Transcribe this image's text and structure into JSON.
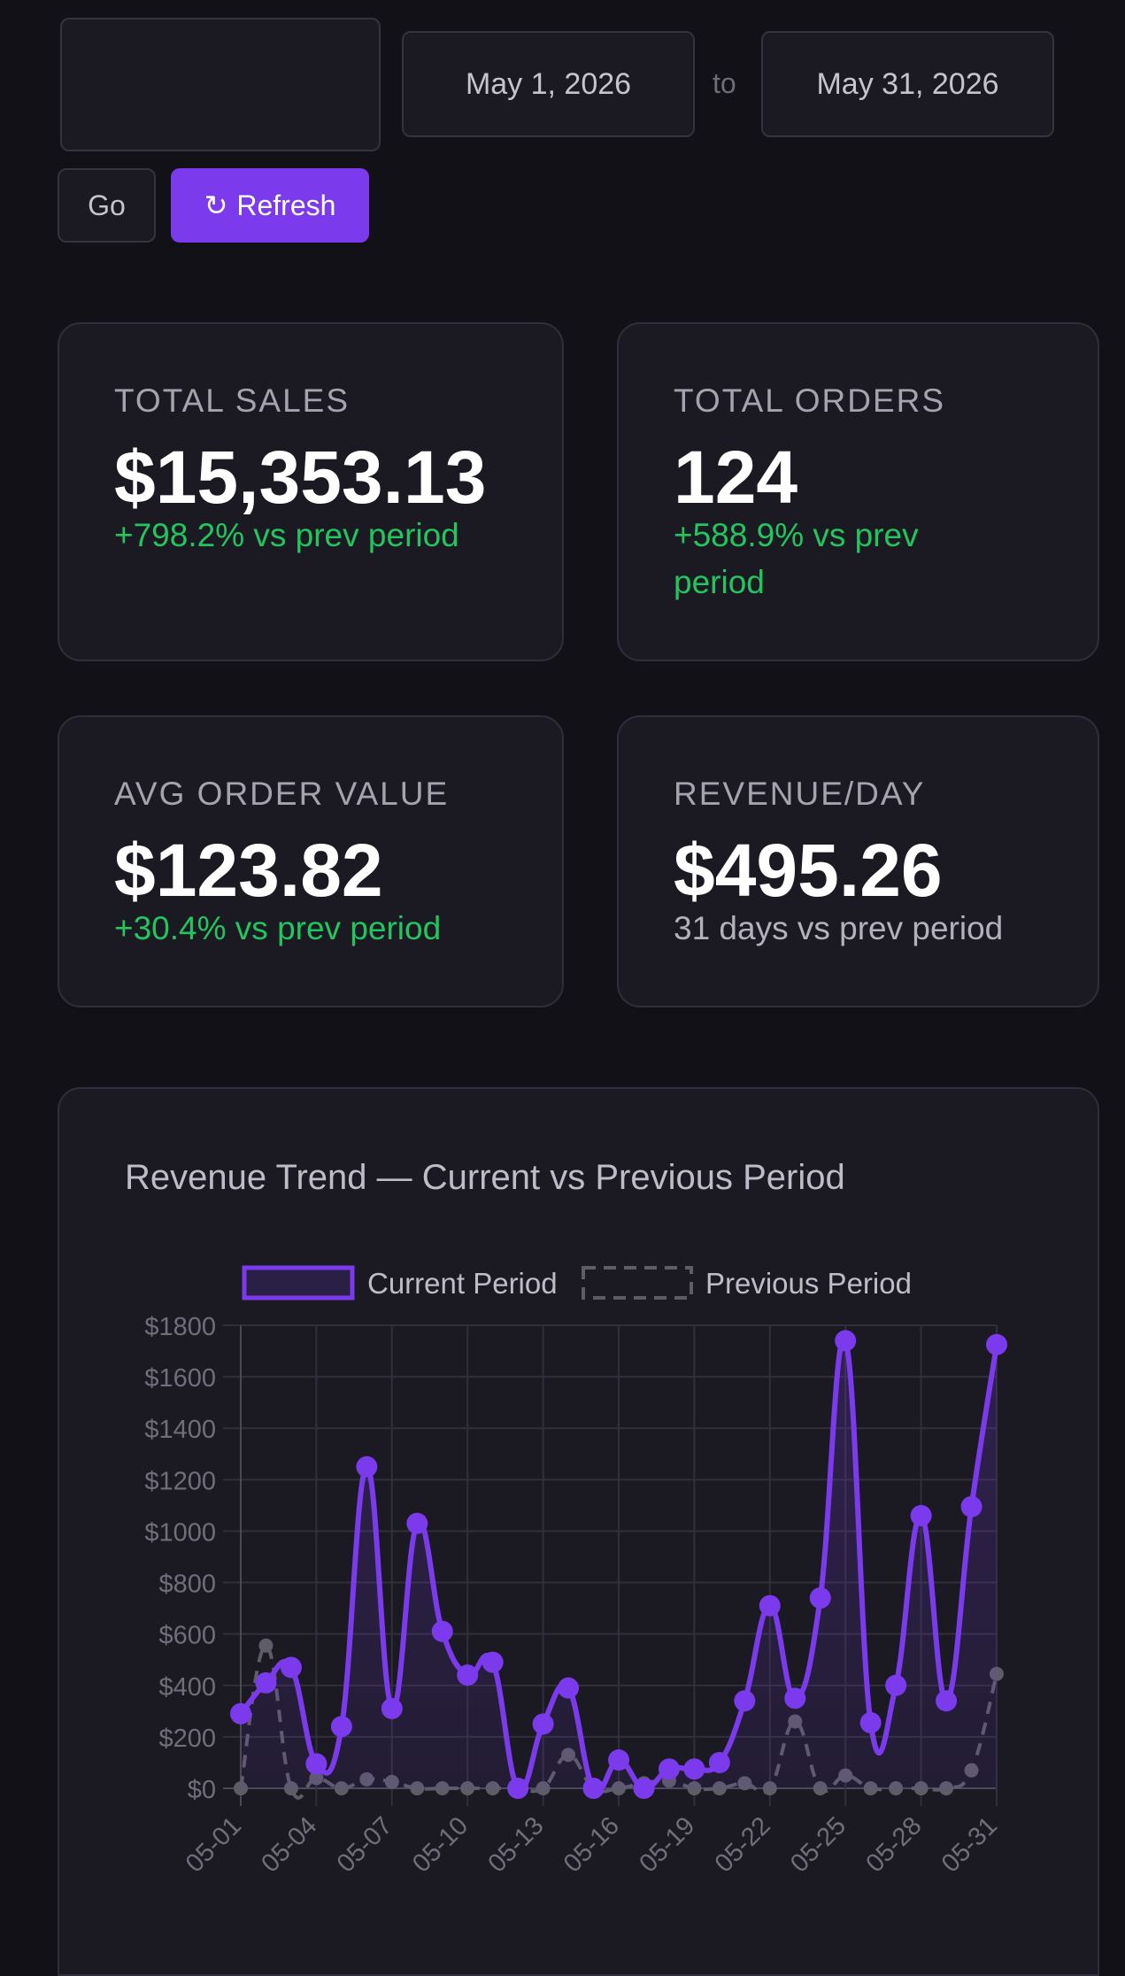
{
  "filters": {
    "preset_value": "",
    "start_date": "May 1, 2026",
    "separator": "to",
    "end_date": "May 31, 2026",
    "go_label": "Go",
    "refresh_icon": "↻",
    "refresh_label": "Refresh"
  },
  "kpis": [
    {
      "label": "TOTAL SALES",
      "value": "$15,353.13",
      "delta_line1": "+798.2% vs prev period",
      "delta_line2": ""
    },
    {
      "label": "TOTAL ORDERS",
      "value": "124",
      "delta_line1": "+588.9% vs prev",
      "delta_line2": "period"
    },
    {
      "label": "AVG ORDER VALUE",
      "value": "$123.82",
      "delta_line1": "+30.4% vs prev period",
      "delta_line2": ""
    },
    {
      "label": "REVENUE/DAY",
      "value": "$495.26",
      "delta_line1": "31 days vs prev period",
      "delta_line2": ""
    }
  ],
  "colors": {
    "accent": "#7c3aed",
    "positive": "#22c55e",
    "previous_series": "#5e5c68",
    "card_bg": "#1b1a23",
    "page_bg": "#121118"
  },
  "chart_data": {
    "type": "line",
    "title": "Revenue Trend — Current vs Previous Period",
    "legend_position": "top",
    "grid": true,
    "x_tick_labels": [
      "05-01",
      "05-04",
      "05-07",
      "05-10",
      "05-13",
      "05-16",
      "05-19",
      "05-22",
      "05-25",
      "05-28",
      "05-31"
    ],
    "x": [
      "05-01",
      "05-02",
      "05-03",
      "05-04",
      "05-05",
      "05-06",
      "05-07",
      "05-08",
      "05-09",
      "05-10",
      "05-11",
      "05-12",
      "05-13",
      "05-14",
      "05-15",
      "05-16",
      "05-17",
      "05-18",
      "05-19",
      "05-20",
      "05-21",
      "05-22",
      "05-23",
      "05-24",
      "05-25",
      "05-26",
      "05-27",
      "05-28",
      "05-29",
      "05-30",
      "05-31"
    ],
    "y_ticks": [
      "$0",
      "$200",
      "$400",
      "$600",
      "$800",
      "$1000",
      "$1200",
      "$1400",
      "$1600",
      "$1800"
    ],
    "ylim": [
      0,
      1800
    ],
    "series": [
      {
        "name": "Current Period",
        "style": "solid",
        "values": [
          290,
          410,
          470,
          95,
          240,
          1250,
          310,
          1030,
          610,
          440,
          490,
          0,
          250,
          390,
          0,
          110,
          0,
          75,
          75,
          100,
          340,
          710,
          350,
          740,
          1740,
          255,
          400,
          1060,
          340,
          1095,
          1725
        ]
      },
      {
        "name": "Previous Period",
        "style": "dashed",
        "values": [
          0,
          555,
          0,
          40,
          0,
          35,
          25,
          0,
          0,
          0,
          0,
          0,
          0,
          130,
          0,
          0,
          20,
          30,
          0,
          0,
          20,
          0,
          260,
          0,
          50,
          0,
          0,
          0,
          0,
          70,
          445
        ]
      }
    ]
  }
}
